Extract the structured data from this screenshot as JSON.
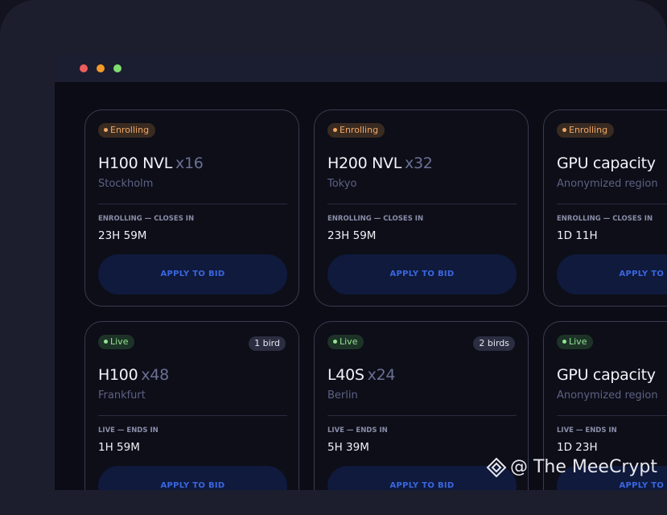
{
  "window": {
    "cards": [
      {
        "status": "Enrolling",
        "title": "H100 NVL",
        "qty": "x16",
        "location": "Stockholm",
        "countdown_label": "ENROLLING — CLOSES IN",
        "countdown": "23H 59M",
        "button": "APPLY TO BID"
      },
      {
        "status": "Enrolling",
        "title": "H200 NVL",
        "qty": "x32",
        "location": "Tokyo",
        "countdown_label": "ENROLLING — CLOSES IN",
        "countdown": "23H 59M",
        "button": "APPLY TO BID"
      },
      {
        "status": "Enrolling",
        "title": "GPU capacity",
        "location": "Anonymized region",
        "countdown_label": "ENROLLING — CLOSES IN",
        "countdown": "1D 11H",
        "button": "APPLY TO BID"
      },
      {
        "status": "Live",
        "bids": "1 bird",
        "title": "H100",
        "qty": "x48",
        "location": "Frankfurt",
        "countdown_label": "LIVE — ENDS IN",
        "countdown": "1H 59M",
        "button": "APPLY TO BID"
      },
      {
        "status": "Live",
        "bids": "2 birds",
        "title": "L40S",
        "qty": "x24",
        "location": "Berlin",
        "countdown_label": "LIVE — ENDS IN",
        "countdown": "5H 39M",
        "button": "APPLY TO BID"
      },
      {
        "status": "Live",
        "title": "GPU capacity",
        "location": "Anonymized region",
        "countdown_label": "LIVE — ENDS IN",
        "countdown": "1D 23H",
        "button": "APPLY TO BID"
      }
    ]
  },
  "watermark": "@ The MeeCrypt"
}
